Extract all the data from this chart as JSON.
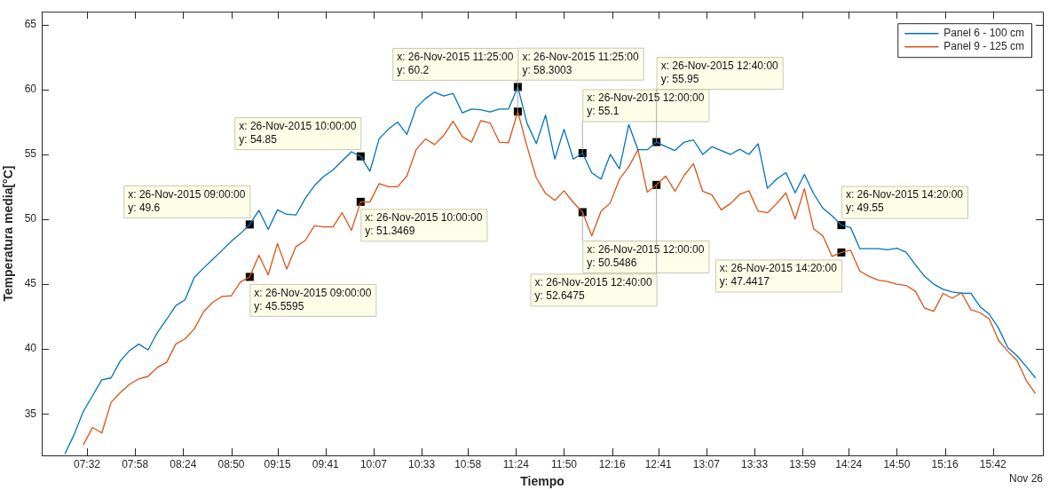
{
  "chart_data": {
    "type": "line",
    "xlabel": "Tiempo",
    "ylabel": "Temperatura media[°C]",
    "x": [
      7.3333,
      7.4167,
      7.5,
      7.5833,
      7.6667,
      7.75,
      7.8333,
      7.9167,
      8,
      8.0833,
      8.1667,
      8.25,
      8.3333,
      8.4167,
      8.5,
      8.5833,
      8.6667,
      8.75,
      8.8333,
      8.9167,
      9,
      9.0833,
      9.1667,
      9.25,
      9.3333,
      9.4167,
      9.5,
      9.5833,
      9.6667,
      9.75,
      9.8333,
      9.9167,
      10,
      10.0833,
      10.1667,
      10.25,
      10.3333,
      10.4167,
      10.5,
      10.5833,
      10.6667,
      10.75,
      10.8333,
      10.9167,
      11,
      11.0833,
      11.1667,
      11.25,
      11.3333,
      11.4167,
      11.5,
      11.5833,
      11.6667,
      11.75,
      11.8333,
      11.9167,
      12,
      12.0833,
      12.1667,
      12.25,
      12.3333,
      12.4167,
      12.5,
      12.5833,
      12.6667,
      12.75,
      12.8333,
      12.9167,
      13,
      13.0833,
      13.1667,
      13.25,
      13.3333,
      13.4167,
      13.5,
      13.5833,
      13.6667,
      13.75,
      13.8333,
      13.9167,
      14,
      14.0833,
      14.1667,
      14.25,
      14.3333,
      14.4167,
      14.5,
      14.5833,
      14.6667,
      14.75,
      14.8333,
      14.9167,
      15,
      15.0833,
      15.1667,
      15.25,
      15.3333,
      15.4167,
      15.5,
      15.5833,
      15.6667,
      15.75,
      15.8333,
      15.9167,
      16,
      16.0833
    ],
    "series": [
      {
        "name": "Panel 6 - 100 cm",
        "color": "#0072bd",
        "values": [
          31.9,
          33.4,
          35.19,
          36.4,
          37.63,
          37.77,
          39.08,
          39.88,
          40.38,
          39.93,
          41.26,
          42.27,
          43.34,
          43.79,
          45.52,
          46.23,
          46.9,
          47.6,
          48.3,
          48.9,
          49.6,
          50.69,
          49.22,
          50.73,
          50.38,
          50.33,
          51.6,
          52.6,
          53.3,
          53.8,
          54.5,
          55.2,
          54.85,
          53.7,
          56.2,
          56.94,
          57.49,
          56.54,
          58.6,
          59.3,
          59.8,
          59.5,
          59.7,
          58.2,
          58.5,
          58.44,
          58.27,
          58.5,
          58.5,
          60.2,
          57.4,
          55.83,
          58.03,
          54.64,
          56.94,
          54.64,
          55.1,
          53.58,
          53.1,
          55.0,
          53.89,
          57.3,
          55.36,
          55.36,
          55.95,
          55.6,
          55.3,
          55.95,
          56.11,
          55.0,
          55.6,
          55.3,
          55.0,
          55.4,
          55.0,
          55.83,
          52.39,
          53.1,
          53.6,
          52.04,
          53.46,
          51.97,
          50.85,
          50.26,
          49.55,
          49.36,
          47.73,
          47.73,
          47.73,
          47.65,
          47.77,
          47.46,
          46.5,
          45.6,
          45.0,
          44.6,
          44.4,
          44.29,
          44.29,
          43.27,
          42.68,
          41.61,
          40.12,
          39.48,
          38.65,
          37.77
        ]
      },
      {
        "name": "Panel 9 - 125 cm",
        "color": "#d95319",
        "values": [
          null,
          null,
          32.61,
          33.96,
          33.53,
          35.88,
          36.64,
          37.27,
          37.7,
          37.89,
          38.58,
          38.96,
          40.38,
          40.78,
          41.54,
          42.87,
          43.6,
          44.05,
          44.1,
          45.17,
          45.5595,
          47.23,
          45.71,
          48.13,
          46.16,
          47.89,
          48.36,
          49.5,
          49.41,
          49.41,
          50.5,
          49.15,
          51.3469,
          51.33,
          52.75,
          52.51,
          52.51,
          53.34,
          55.36,
          56.19,
          55.76,
          56.47,
          57.56,
          56.37,
          55.95,
          57.61,
          57.42,
          55.95,
          55.9,
          58.3003,
          55.6,
          53.2,
          52.0,
          51.45,
          52.2,
          51.3,
          50.5486,
          48.72,
          50.62,
          51.26,
          53.1,
          54.05,
          55.36,
          52.09,
          52.6475,
          53.34,
          52.16,
          53.39,
          54.29,
          52.16,
          51.87,
          50.73,
          51.21,
          51.92,
          52.2,
          50.62,
          50.5,
          51.21,
          52.04,
          50.02,
          52.35,
          49.26,
          48.72,
          47.13,
          47.4417,
          47.61,
          46.0,
          45.6,
          45.3,
          45.2,
          45.0,
          44.9,
          44.45,
          43.15,
          42.91,
          44.29,
          43.91,
          44.34,
          43.03,
          42.8,
          42.32,
          40.66,
          39.83,
          39.12,
          37.58,
          36.56
        ]
      }
    ],
    "xlim": [
      7.125,
      16.15
    ],
    "xticks": [
      {
        "value": 7.5333,
        "label": "07:32"
      },
      {
        "value": 7.9667,
        "label": "07:58"
      },
      {
        "value": 8.4,
        "label": "08:24"
      },
      {
        "value": 8.8333,
        "label": "08:50"
      },
      {
        "value": 9.25,
        "label": "09:15"
      },
      {
        "value": 9.6833,
        "label": "09:41"
      },
      {
        "value": 10.1167,
        "label": "10:07"
      },
      {
        "value": 10.55,
        "label": "10:33"
      },
      {
        "value": 10.9667,
        "label": "10:58"
      },
      {
        "value": 11.4,
        "label": "11:24"
      },
      {
        "value": 11.8333,
        "label": "11:50"
      },
      {
        "value": 12.2667,
        "label": "12:16"
      },
      {
        "value": 12.6833,
        "label": "12:41"
      },
      {
        "value": 13.1167,
        "label": "13:07"
      },
      {
        "value": 13.55,
        "label": "13:33"
      },
      {
        "value": 13.9833,
        "label": "13:59"
      },
      {
        "value": 14.4,
        "label": "14:24"
      },
      {
        "value": 14.8333,
        "label": "14:50"
      },
      {
        "value": 15.2667,
        "label": "15:16"
      },
      {
        "value": 15.7,
        "label": "15:42"
      }
    ],
    "ylim": [
      31.8,
      66
    ],
    "yticks": [
      35,
      40,
      45,
      50,
      55,
      60,
      65
    ],
    "legend": "top right",
    "annotations": [
      {
        "text": "x: 26-Nov-2015 09:00:00\ny: 49.6",
        "x": 9,
        "y": 49.6
      },
      {
        "text": "x: 26-Nov-2015 09:00:00\ny: 45.5595",
        "x": 9,
        "y": 45.5595
      },
      {
        "text": "x: 26-Nov-2015 10:00:00\ny: 54.85",
        "x": 10,
        "y": 54.85
      },
      {
        "text": "x: 26-Nov-2015 10:00:00\ny: 51.3469",
        "x": 10,
        "y": 51.3469
      },
      {
        "text": "x: 26-Nov-2015 11:25:00\ny: 60.2",
        "x": 11.4167,
        "y": 60.2
      },
      {
        "text": "x: 26-Nov-2015 11:25:00\ny: 58.3003",
        "x": 11.4167,
        "y": 58.3003
      },
      {
        "text": "x: 26-Nov-2015 12:00:00\ny: 55.1",
        "x": 12,
        "y": 55.1
      },
      {
        "text": "x: 26-Nov-2015 12:00:00\ny: 50.5486",
        "x": 12,
        "y": 50.5486
      },
      {
        "text": "x: 26-Nov-2015 12:40:00\ny: 55.95",
        "x": 12.6667,
        "y": 55.95
      },
      {
        "text": "x: 26-Nov-2015 12:40:00\ny: 52.6475",
        "x": 12.6667,
        "y": 52.6475
      },
      {
        "text": "x: 26-Nov-2015 14:20:00\ny: 49.55",
        "x": 14.3333,
        "y": 49.55
      },
      {
        "text": "x: 26-Nov-2015 14:20:00\ny: 47.4417",
        "x": 14.3333,
        "y": 47.4417
      },
      "Nov 26"
    ]
  }
}
